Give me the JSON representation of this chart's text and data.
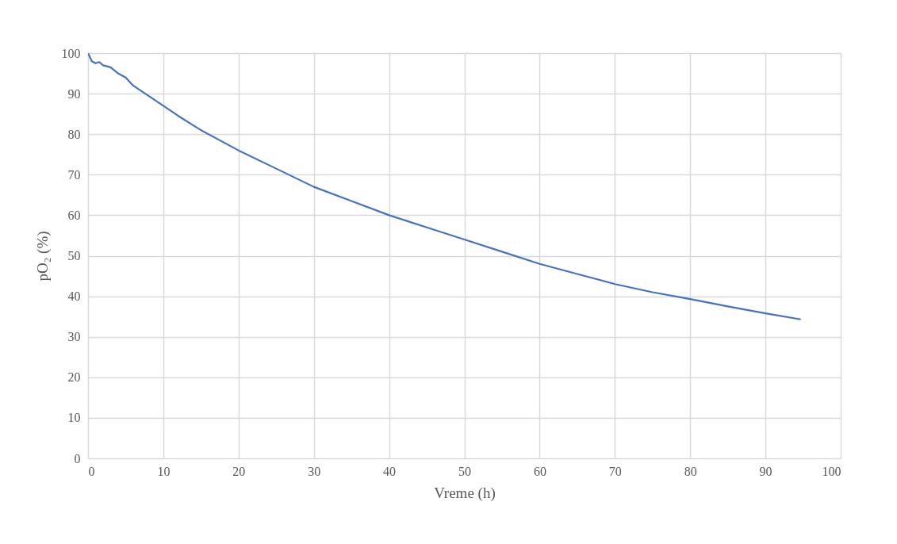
{
  "chart_data": {
    "type": "line",
    "xlabel": "Vreme (h)",
    "ylabel": "pO₂ (%)",
    "x": [
      0,
      0.5,
      1,
      1.5,
      2,
      3,
      4,
      5,
      6,
      8,
      10,
      12,
      15,
      20,
      25,
      30,
      35,
      40,
      45,
      50,
      55,
      60,
      65,
      70,
      75,
      80,
      85,
      90,
      94.7
    ],
    "series": [
      {
        "color": "#4472c4",
        "values": [
          100,
          98,
          97.5,
          97.8,
          97,
          96.5,
          95,
          94,
          92,
          89.5,
          87,
          84.5,
          81,
          76,
          71.5,
          67,
          63.5,
          60,
          57,
          54,
          51,
          48,
          45.5,
          43,
          41,
          39.3,
          37.5,
          35.8,
          34.3
        ]
      }
    ],
    "xlim": [
      0,
      100
    ],
    "xticks": [
      0,
      10,
      20,
      30,
      40,
      50,
      60,
      70,
      80,
      90,
      100
    ],
    "ylim": [
      0,
      100
    ],
    "yticks": [
      0,
      10,
      20,
      30,
      40,
      50,
      60,
      70,
      80,
      90,
      100
    ],
    "grid": true,
    "marker": "none",
    "line_style": "solid"
  }
}
